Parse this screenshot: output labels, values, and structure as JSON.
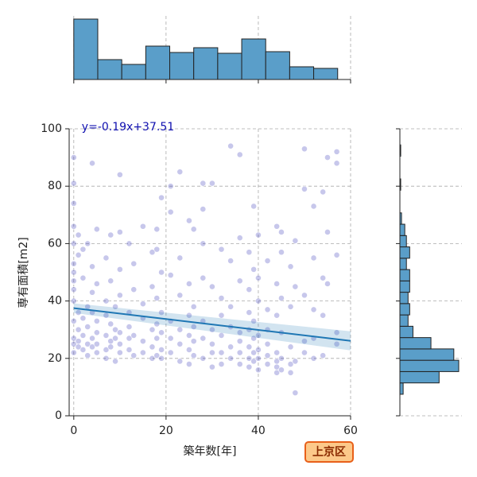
{
  "badge": "上京区",
  "chart_data": [
    {
      "type": "scatter",
      "color": "#2020b0",
      "line_color": "#1f77b4",
      "xlabel": "築年数[年]",
      "ylabel": "専有面積[m2]",
      "annotation": "y=-0.19x+37.51",
      "xlim": [
        -1,
        60
      ],
      "ylim": [
        0,
        100
      ],
      "xticks": [
        0,
        20,
        40,
        60
      ],
      "yticks": [
        0,
        20,
        40,
        60,
        80,
        100
      ],
      "grid": true,
      "regression": {
        "x": [
          0,
          60
        ],
        "y": [
          37.51,
          26.11
        ]
      },
      "x": [
        0,
        0,
        0,
        0,
        0,
        0,
        0,
        0,
        0,
        0,
        0,
        0,
        0,
        0,
        1,
        1,
        1,
        1,
        1,
        1,
        2,
        2,
        2,
        2,
        2,
        3,
        3,
        3,
        3,
        3,
        4,
        4,
        4,
        4,
        4,
        4,
        5,
        5,
        5,
        5,
        5,
        5,
        7,
        7,
        7,
        7,
        7,
        7,
        8,
        8,
        8,
        8,
        8,
        9,
        9,
        9,
        9,
        10,
        10,
        10,
        10,
        10,
        10,
        10,
        12,
        12,
        12,
        12,
        12,
        13,
        13,
        13,
        13,
        15,
        15,
        15,
        15,
        15,
        17,
        17,
        17,
        17,
        17,
        18,
        18,
        18,
        18,
        18,
        18,
        19,
        19,
        19,
        19,
        19,
        19,
        21,
        21,
        21,
        21,
        21,
        21,
        23,
        23,
        23,
        23,
        23,
        23,
        25,
        25,
        25,
        25,
        25,
        25,
        26,
        26,
        26,
        26,
        26,
        28,
        28,
        28,
        28,
        28,
        28,
        28,
        30,
        30,
        30,
        30,
        30,
        30,
        32,
        32,
        32,
        32,
        32,
        32,
        34,
        34,
        34,
        34,
        34,
        34,
        36,
        36,
        36,
        36,
        36,
        36,
        36,
        38,
        38,
        38,
        38,
        38,
        38,
        38,
        39,
        39,
        39,
        39,
        39,
        39,
        40,
        40,
        40,
        40,
        40,
        40,
        40,
        42,
        42,
        42,
        42,
        42,
        42,
        44,
        44,
        44,
        44,
        44,
        44,
        44,
        45,
        45,
        45,
        45,
        45,
        45,
        47,
        47,
        47,
        47,
        47,
        48,
        48,
        48,
        48,
        50,
        50,
        50,
        50,
        50,
        52,
        52,
        52,
        52,
        52,
        54,
        54,
        54,
        54,
        55,
        55,
        55,
        57,
        57,
        57,
        57,
        57
      ],
      "values": [
        90,
        81,
        74,
        66,
        60,
        53,
        50,
        47,
        44,
        40,
        33,
        27,
        25,
        22,
        63,
        56,
        36,
        30,
        26,
        24,
        58,
        48,
        34,
        28,
        23,
        60,
        38,
        31,
        25,
        21,
        88,
        52,
        43,
        36,
        27,
        24,
        65,
        46,
        33,
        29,
        25,
        22,
        55,
        40,
        35,
        28,
        23,
        20,
        63,
        47,
        32,
        26,
        24,
        38,
        30,
        27,
        19,
        84,
        64,
        51,
        42,
        29,
        25,
        22,
        60,
        36,
        31,
        27,
        23,
        53,
        44,
        28,
        21,
        66,
        39,
        34,
        26,
        22,
        57,
        45,
        30,
        24,
        20,
        65,
        58,
        41,
        32,
        27,
        21,
        76,
        50,
        36,
        29,
        23,
        20,
        80,
        71,
        49,
        33,
        27,
        22,
        85,
        55,
        42,
        30,
        25,
        19,
        68,
        46,
        35,
        28,
        23,
        18,
        65,
        38,
        31,
        26,
        21,
        81,
        72,
        60,
        48,
        33,
        27,
        20,
        81,
        45,
        30,
        25,
        22,
        17,
        58,
        41,
        35,
        28,
        22,
        18,
        94,
        54,
        38,
        31,
        24,
        20,
        91,
        62,
        47,
        29,
        26,
        22,
        18,
        57,
        44,
        36,
        30,
        24,
        20,
        17,
        73,
        51,
        33,
        27,
        22,
        19,
        63,
        48,
        40,
        28,
        23,
        20,
        16,
        54,
        37,
        30,
        25,
        21,
        18,
        66,
        46,
        35,
        22,
        19,
        17,
        15,
        64,
        57,
        41,
        29,
        20,
        16,
        52,
        38,
        24,
        18,
        15,
        61,
        45,
        19,
        8,
        93,
        79,
        42,
        26,
        22,
        73,
        55,
        37,
        27,
        20,
        78,
        48,
        35,
        21,
        90,
        64,
        46,
        92,
        88,
        56,
        29,
        25
      ]
    },
    {
      "type": "histogram",
      "orientation": "vertical",
      "color": "#5a9ec9",
      "bins": [
        0,
        5.2,
        10.4,
        15.6,
        20.8,
        26,
        31.2,
        36.4,
        41.6,
        46.8,
        52,
        57.2
      ],
      "values": [
        76,
        25,
        19,
        42,
        34,
        40,
        33,
        51,
        35,
        16,
        14
      ]
    },
    {
      "type": "histogram",
      "orientation": "horizontal",
      "color": "#5a9ec9",
      "bins": [
        7.5,
        11.45,
        15.4,
        19.35,
        23.3,
        27.25,
        31.2,
        35.15,
        39.1,
        43.05,
        47.0,
        50.95,
        54.9,
        58.85,
        62.8,
        66.75,
        70.7,
        74.65,
        78.6,
        82.55,
        86.5,
        90.45,
        94.4
      ],
      "values": [
        4,
        48,
        72,
        66,
        38,
        16,
        10,
        12,
        10,
        12,
        12,
        8,
        12,
        8,
        6,
        2,
        0,
        0,
        1,
        0,
        0,
        1
      ]
    }
  ]
}
